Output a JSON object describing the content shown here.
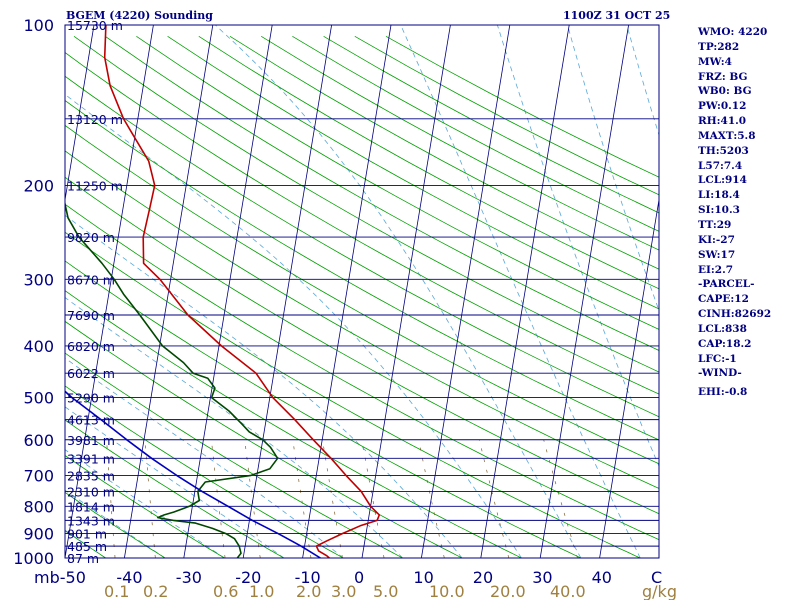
{
  "header": {
    "title": "BGEM (4220) Sounding",
    "time": "1100Z 31 OCT 25"
  },
  "indices": [
    "WMO: 4220",
    "TP:282",
    "MW:4",
    "FRZ: BG",
    "WB0: BG",
    "PW:0.12",
    "RH:41.0",
    "MAXT:5.8",
    "TH:5203",
    "L57:7.4",
    "LCL:914",
    "LI:18.4",
    "SI:10.3",
    "TT:29",
    "KI:-27",
    "SW:17",
    "EI:2.7",
    "-PARCEL-",
    "CAPE:12",
    "CINH:82692",
    "LCL:838",
    "CAP:18.2",
    "LFC:-1",
    "-WIND-",
    "EHI:-0.8"
  ],
  "colors": {
    "frame": "#000080",
    "isobar": "#000080",
    "isotherm": "#000080",
    "dry_adiabat": "#00a000",
    "moist_adiabat": "#5aa8d8",
    "mixing_ratio": "#806030",
    "temperature": "#c00000",
    "dewpoint": "#004800",
    "parcel": "#0000c0",
    "mixing_ratio_label": "#a08040"
  },
  "chart_data": {
    "type": "skew-t log-p sounding",
    "title": "BGEM (4220) Sounding",
    "pressure_axis": {
      "unit": "mb",
      "scale": "log",
      "range": [
        1000,
        100
      ],
      "ticks": [
        100,
        200,
        300,
        400,
        500,
        600,
        700,
        800,
        900,
        1000
      ],
      "tick_labels": [
        "100",
        "200",
        "300",
        "400",
        "500",
        "600",
        "700",
        "800",
        "900",
        "1000"
      ]
    },
    "temperature_axis": {
      "unit": "C",
      "range": [
        -50,
        50
      ],
      "ticks": [
        -50,
        -40,
        -30,
        -20,
        -10,
        0,
        10,
        20,
        30,
        40,
        50
      ],
      "tick_labels": [
        "-50",
        "-40",
        "-30",
        "-20",
        "-10",
        "0",
        "10",
        "20",
        "30",
        "40",
        "C"
      ],
      "first_label_prefix": "mb"
    },
    "mixing_ratio_axis": {
      "unit": "g/kg",
      "ticks": [
        0.1,
        0.2,
        0.6,
        1.0,
        2.0,
        3.0,
        5.0,
        10.0,
        20.0,
        40.0
      ],
      "tick_labels": [
        "0.1",
        "0.2",
        "0.6",
        "1.0",
        "2.0",
        "3.0",
        "5.0",
        "10.0",
        "20.0",
        "40.0"
      ],
      "unit_label": "g/kg"
    },
    "heights": [
      {
        "p": 100,
        "label": "15730 m"
      },
      {
        "p": 150,
        "label": "13120 m"
      },
      {
        "p": 200,
        "label": "11250 m"
      },
      {
        "p": 250,
        "label": "9820 m"
      },
      {
        "p": 300,
        "label": "8670 m"
      },
      {
        "p": 350,
        "label": "7690 m"
      },
      {
        "p": 400,
        "label": "6820 m"
      },
      {
        "p": 450,
        "label": "6022 m"
      },
      {
        "p": 500,
        "label": "5290 m"
      },
      {
        "p": 550,
        "label": "4613 m"
      },
      {
        "p": 600,
        "label": "3981 m"
      },
      {
        "p": 650,
        "label": "3391 m"
      },
      {
        "p": 700,
        "label": "2835 m"
      },
      {
        "p": 750,
        "label": "2310 m"
      },
      {
        "p": 800,
        "label": "1814 m"
      },
      {
        "p": 850,
        "label": "1343 m"
      },
      {
        "p": 900,
        "label": "901 m"
      },
      {
        "p": 950,
        "label": "485 m"
      },
      {
        "p": 1000,
        "label": "87 m"
      }
    ],
    "series": [
      {
        "key": "temperature",
        "points": [
          [
            1000,
            -5.5
          ],
          [
            990,
            -6.0
          ],
          [
            970,
            -7.5
          ],
          [
            950,
            -8.0
          ],
          [
            930,
            -6.5
          ],
          [
            900,
            -4.0
          ],
          [
            870,
            -1.2
          ],
          [
            850,
            1.5
          ],
          [
            830,
            1.7
          ],
          [
            800,
            0.0
          ],
          [
            750,
            -2.0
          ],
          [
            700,
            -5.0
          ],
          [
            650,
            -8.0
          ],
          [
            600,
            -11.5
          ],
          [
            550,
            -15.2
          ],
          [
            500,
            -19.5
          ],
          [
            450,
            -23.0
          ],
          [
            400,
            -29.6
          ],
          [
            350,
            -36.1
          ],
          [
            300,
            -41.8
          ],
          [
            280,
            -45.0
          ],
          [
            250,
            -45.8
          ],
          [
            220,
            -45.5
          ],
          [
            200,
            -45.3
          ],
          [
            180,
            -47.0
          ],
          [
            160,
            -50.5
          ],
          [
            150,
            -52.4
          ],
          [
            130,
            -55.6
          ],
          [
            115,
            -57.3
          ],
          [
            100,
            -58.0
          ]
        ]
      },
      {
        "key": "dewpoint",
        "points": [
          [
            1000,
            -21.0
          ],
          [
            980,
            -20.5
          ],
          [
            950,
            -21.0
          ],
          [
            920,
            -22.0
          ],
          [
            900,
            -23.6
          ],
          [
            880,
            -26.0
          ],
          [
            860,
            -29.0
          ],
          [
            850,
            -32.8
          ],
          [
            840,
            -35.5
          ],
          [
            830,
            -34.5
          ],
          [
            820,
            -33.0
          ],
          [
            800,
            -30.5
          ],
          [
            780,
            -29.0
          ],
          [
            750,
            -29.5
          ],
          [
            720,
            -28.5
          ],
          [
            700,
            -21.0
          ],
          [
            680,
            -18.0
          ],
          [
            650,
            -17.0
          ],
          [
            620,
            -18.5
          ],
          [
            600,
            -20.0
          ],
          [
            580,
            -22.5
          ],
          [
            560,
            -24.0
          ],
          [
            530,
            -26.5
          ],
          [
            500,
            -29.8
          ],
          [
            480,
            -29.5
          ],
          [
            460,
            -31.0
          ],
          [
            450,
            -33.6
          ],
          [
            430,
            -35.5
          ],
          [
            400,
            -39.5
          ],
          [
            350,
            -44.2
          ],
          [
            320,
            -47.5
          ],
          [
            300,
            -49.5
          ],
          [
            280,
            -52.0
          ],
          [
            260,
            -55.0
          ],
          [
            250,
            -56.6
          ],
          [
            230,
            -59.0
          ],
          [
            215,
            -60.0
          ],
          [
            205,
            -61.5
          ],
          [
            200,
            -62.0
          ],
          [
            190,
            -62.6
          ],
          [
            180,
            -62.0
          ],
          [
            160,
            -63.3
          ],
          [
            150,
            -64.2
          ],
          [
            140,
            -65.5
          ],
          [
            130,
            -67.5
          ],
          [
            115,
            -70.0
          ],
          [
            100,
            -71.0
          ]
        ]
      },
      {
        "key": "parcel",
        "points": [
          [
            1000,
            -7.0
          ],
          [
            950,
            -10.6
          ],
          [
            900,
            -14.8
          ],
          [
            850,
            -19.5
          ],
          [
            800,
            -24.0
          ],
          [
            750,
            -28.8
          ],
          [
            700,
            -33.5
          ],
          [
            650,
            -38.2
          ],
          [
            600,
            -42.9
          ],
          [
            550,
            -47.8
          ],
          [
            500,
            -53.3
          ],
          [
            450,
            -58.6
          ],
          [
            400,
            -64.2
          ],
          [
            350,
            -70.8
          ],
          [
            300,
            -77.2
          ],
          [
            250,
            -84.7
          ],
          [
            200,
            -94.0
          ],
          [
            150,
            -105.6
          ],
          [
            100,
            -123.0
          ]
        ]
      }
    ],
    "background_lines": {
      "isotherms_step_c": 10,
      "dry_adiabats_theta_k": [
        220,
        230,
        240,
        250,
        260,
        270,
        280,
        290,
        300,
        310,
        320,
        330,
        340,
        350,
        360,
        370,
        380,
        390,
        400,
        410,
        420,
        430,
        440,
        450,
        460,
        470,
        480,
        490,
        500
      ],
      "moist_adiabats_thetae_k": [
        230,
        240,
        250,
        260,
        270,
        280,
        290,
        300,
        310,
        320,
        330,
        340,
        350,
        360
      ],
      "mixing_ratios_gkg": [
        0.1,
        0.2,
        0.6,
        1.0,
        2.0,
        3.0,
        5.0,
        10.0,
        20.0,
        40.0
      ]
    },
    "grid": true
  }
}
